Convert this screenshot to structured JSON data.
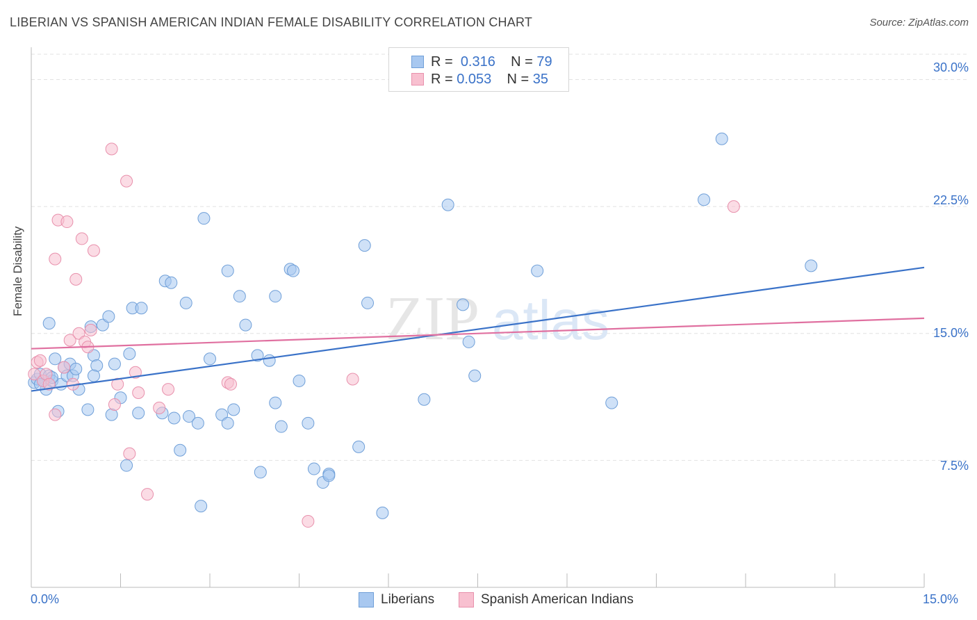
{
  "title": "LIBERIAN VS SPANISH AMERICAN INDIAN FEMALE DISABILITY CORRELATION CHART",
  "source": "Source: ZipAtlas.com",
  "watermark": {
    "zip": "ZIP",
    "atlas": "atlas"
  },
  "legend_stats": [
    {
      "r_label": "R =",
      "r_value": "0.316",
      "n_label": "N =",
      "n_value": "79",
      "color": "#a8c8f0",
      "border": "#6f9fd8"
    },
    {
      "r_label": "R =",
      "r_value": "0.053",
      "n_label": "N =",
      "n_value": "35",
      "color": "#f8c0d0",
      "border": "#e890ac"
    }
  ],
  "chart_data": {
    "type": "scatter",
    "title": "LIBERIAN VS SPANISH AMERICAN INDIAN FEMALE DISABILITY CORRELATION CHART",
    "xlabel": "",
    "ylabel": "Female Disability",
    "xlim": [
      0,
      15
    ],
    "ylim": [
      0,
      31.5
    ],
    "x_tick_labels": [
      "0.0%",
      "15.0%"
    ],
    "y_tick_labels": [
      "7.5%",
      "15.0%",
      "22.5%",
      "30.0%"
    ],
    "y_tick_values": [
      7.5,
      15,
      22.5,
      30
    ],
    "grid": true,
    "legend_position": "bottom",
    "series": [
      {
        "name": "Liberians",
        "color": "#6f9fd8",
        "fill": "#a8c8f0",
        "trend": {
          "x": [
            0,
            15
          ],
          "y": [
            11.6,
            18.9
          ],
          "color": "#3a72c8"
        },
        "points": [
          [
            0.05,
            12.1
          ],
          [
            0.1,
            12.3
          ],
          [
            0.15,
            12.6
          ],
          [
            0.2,
            12.2
          ],
          [
            0.25,
            11.7
          ],
          [
            0.3,
            12.5
          ],
          [
            0.35,
            12.2
          ],
          [
            0.4,
            13.5
          ],
          [
            0.45,
            10.4
          ],
          [
            0.5,
            12.0
          ],
          [
            0.55,
            13.0
          ],
          [
            0.6,
            12.5
          ],
          [
            0.65,
            13.2
          ],
          [
            0.7,
            12.5
          ],
          [
            0.75,
            12.9
          ],
          [
            0.8,
            11.7
          ],
          [
            0.3,
            15.6
          ],
          [
            0.35,
            12.4
          ],
          [
            0.95,
            10.5
          ],
          [
            1.0,
            15.4
          ],
          [
            1.05,
            13.7
          ],
          [
            1.1,
            13.1
          ],
          [
            1.2,
            15.5
          ],
          [
            1.3,
            16.0
          ],
          [
            1.35,
            10.2
          ],
          [
            1.4,
            13.2
          ],
          [
            1.5,
            11.2
          ],
          [
            1.6,
            7.2
          ],
          [
            1.65,
            13.8
          ],
          [
            1.7,
            16.5
          ],
          [
            1.8,
            10.3
          ],
          [
            1.85,
            16.5
          ],
          [
            2.2,
            10.3
          ],
          [
            2.25,
            18.1
          ],
          [
            2.35,
            18.0
          ],
          [
            2.4,
            10.0
          ],
          [
            2.5,
            8.1
          ],
          [
            2.6,
            16.8
          ],
          [
            2.65,
            10.1
          ],
          [
            2.8,
            9.7
          ],
          [
            2.85,
            4.8
          ],
          [
            2.9,
            21.8
          ],
          [
            3.0,
            13.5
          ],
          [
            3.2,
            10.2
          ],
          [
            3.3,
            9.7
          ],
          [
            3.3,
            18.7
          ],
          [
            3.4,
            10.5
          ],
          [
            3.5,
            17.2
          ],
          [
            3.6,
            15.5
          ],
          [
            3.8,
            13.7
          ],
          [
            3.85,
            6.8
          ],
          [
            4.0,
            13.4
          ],
          [
            4.1,
            17.2
          ],
          [
            4.1,
            10.9
          ],
          [
            4.2,
            9.5
          ],
          [
            4.35,
            18.8
          ],
          [
            4.4,
            18.7
          ],
          [
            4.5,
            12.2
          ],
          [
            4.65,
            9.7
          ],
          [
            4.75,
            7.0
          ],
          [
            4.9,
            6.2
          ],
          [
            5.0,
            6.7
          ],
          [
            5.0,
            6.6
          ],
          [
            5.5,
            8.3
          ],
          [
            5.6,
            20.2
          ],
          [
            5.65,
            16.8
          ],
          [
            5.9,
            4.4
          ],
          [
            6.6,
            11.1
          ],
          [
            7.0,
            22.6
          ],
          [
            7.25,
            16.7
          ],
          [
            7.35,
            14.5
          ],
          [
            7.45,
            12.5
          ],
          [
            8.5,
            18.7
          ],
          [
            9.75,
            10.9
          ],
          [
            11.3,
            22.9
          ],
          [
            11.6,
            26.5
          ],
          [
            13.1,
            19.0
          ],
          [
            1.05,
            12.5
          ],
          [
            0.15,
            12.0
          ]
        ]
      },
      {
        "name": "Spanish American Indians",
        "color": "#e890ac",
        "fill": "#f8c0d0",
        "trend": {
          "x": [
            0,
            15
          ],
          "y": [
            14.1,
            15.9
          ],
          "color": "#e070a0"
        },
        "points": [
          [
            0.05,
            12.6
          ],
          [
            0.1,
            13.3
          ],
          [
            0.15,
            13.4
          ],
          [
            0.2,
            12.2
          ],
          [
            0.25,
            12.6
          ],
          [
            0.3,
            12.0
          ],
          [
            0.4,
            10.2
          ],
          [
            0.45,
            21.7
          ],
          [
            0.55,
            13.0
          ],
          [
            0.6,
            21.6
          ],
          [
            0.65,
            14.6
          ],
          [
            0.7,
            12.0
          ],
          [
            0.75,
            18.2
          ],
          [
            0.8,
            15.0
          ],
          [
            0.85,
            20.6
          ],
          [
            0.9,
            14.5
          ],
          [
            0.95,
            14.2
          ],
          [
            1.0,
            15.2
          ],
          [
            1.05,
            19.9
          ],
          [
            0.4,
            19.4
          ],
          [
            1.35,
            25.9
          ],
          [
            1.4,
            10.8
          ],
          [
            1.45,
            12.0
          ],
          [
            1.6,
            24.0
          ],
          [
            1.65,
            7.9
          ],
          [
            1.75,
            12.7
          ],
          [
            1.8,
            11.5
          ],
          [
            1.95,
            5.5
          ],
          [
            2.15,
            10.6
          ],
          [
            2.3,
            11.7
          ],
          [
            3.3,
            12.1
          ],
          [
            3.35,
            12.0
          ],
          [
            4.65,
            3.9
          ],
          [
            5.4,
            12.3
          ],
          [
            11.8,
            22.5
          ]
        ]
      }
    ]
  }
}
